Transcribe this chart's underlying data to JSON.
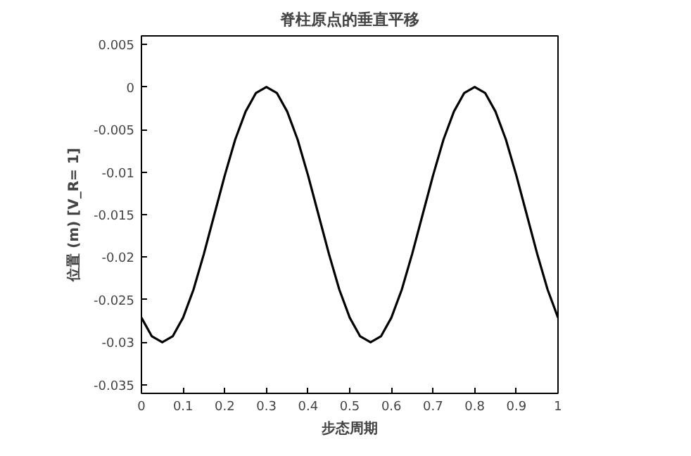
{
  "chart_data": {
    "type": "line",
    "title": "脊柱原点的垂直平移",
    "xlabel": "步态周期",
    "ylabel": "位置 (m) [V_R= 1]",
    "x": [
      0,
      0.025,
      0.05,
      0.075,
      0.1,
      0.125,
      0.15,
      0.175,
      0.2,
      0.225,
      0.25,
      0.275,
      0.3,
      0.325,
      0.35,
      0.375,
      0.4,
      0.425,
      0.45,
      0.475,
      0.5,
      0.525,
      0.55,
      0.575,
      0.6,
      0.625,
      0.65,
      0.675,
      0.7,
      0.725,
      0.75,
      0.775,
      0.8,
      0.825,
      0.85,
      0.875,
      0.9,
      0.925,
      0.95,
      0.975,
      1
    ],
    "series": [
      {
        "color": "#000000",
        "values": [
          -0.0271,
          -0.0293,
          -0.03,
          -0.0293,
          -0.0271,
          -0.0238,
          -0.0196,
          -0.015,
          -0.0104,
          -0.0062,
          -0.0029,
          -0.0007,
          0,
          -0.0007,
          -0.0029,
          -0.0062,
          -0.0104,
          -0.015,
          -0.0196,
          -0.0238,
          -0.0271,
          -0.0293,
          -0.03,
          -0.0293,
          -0.0271,
          -0.0238,
          -0.0196,
          -0.015,
          -0.0104,
          -0.0062,
          -0.0029,
          -0.0007,
          0,
          -0.0007,
          -0.0029,
          -0.0062,
          -0.0104,
          -0.015,
          -0.0196,
          -0.0238,
          -0.0271
        ]
      }
    ],
    "xlim": [
      0,
      1
    ],
    "ylim": [
      -0.036,
      0.006
    ],
    "xticks": [
      0,
      0.1,
      0.2,
      0.3,
      0.4,
      0.5,
      0.6,
      0.7,
      0.8,
      0.9,
      1
    ],
    "yticks": [
      -0.035,
      -0.03,
      -0.025,
      -0.02,
      -0.015,
      -0.01,
      -0.005,
      0,
      0.005
    ],
    "grid": false,
    "line_style": "solid"
  }
}
